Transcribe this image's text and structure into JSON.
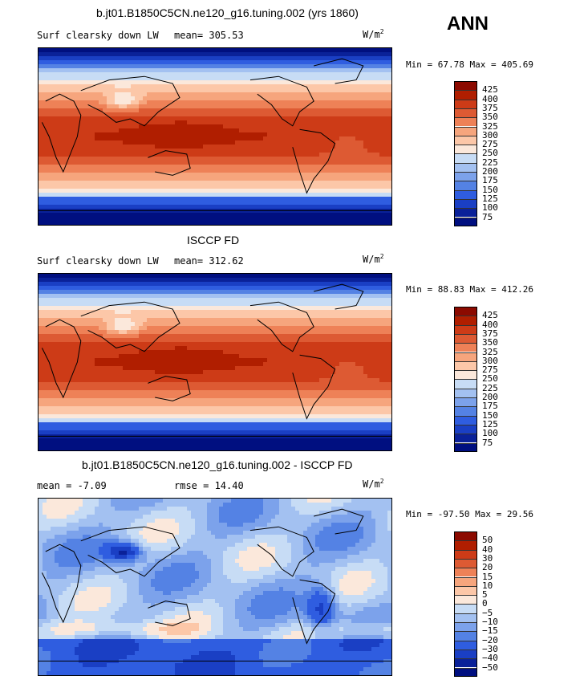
{
  "page": {
    "season": "ANN"
  },
  "chart_data": [
    {
      "type": "heatmap",
      "title": "b.jt01.B1850C5CN.ne120_g16.tuning.002 (yrs 1860)",
      "variable": "Surf clearsky down LW",
      "mean_label": "mean= 305.53",
      "units": "W/m",
      "units_sup": "2",
      "minmax": "Min =  67.78 Max = 405.69",
      "min": 67.78,
      "max": 405.69,
      "mean": 305.53,
      "colorbar_levels": [
        "425",
        "400",
        "375",
        "350",
        "325",
        "300",
        "275",
        "250",
        "225",
        "200",
        "175",
        "150",
        "125",
        "100",
        "75"
      ],
      "colorbar_colors": [
        "#8c0a00",
        "#b01e00",
        "#cd3b17",
        "#dd5a33",
        "#ee8157",
        "#f6a57d",
        "#fcc7a8",
        "#fbe8db",
        "#c7dcf5",
        "#a3c1f1",
        "#7ca2eb",
        "#5482e4",
        "#2f5de0",
        "#1a3fc4",
        "#0a2199",
        "#000f80"
      ],
      "profile": "bottom"
    },
    {
      "type": "heatmap",
      "title": "ISCCP FD",
      "variable": "Surf clearsky down LW",
      "mean_label": "mean= 312.62",
      "units": "W/m",
      "units_sup": "2",
      "minmax": "Min =  88.83 Max = 412.26",
      "min": 88.83,
      "max": 412.26,
      "mean": 312.62,
      "colorbar_levels": [
        "425",
        "400",
        "375",
        "350",
        "325",
        "300",
        "275",
        "250",
        "225",
        "200",
        "175",
        "150",
        "125",
        "100",
        "75"
      ],
      "colorbar_colors": [
        "#8c0a00",
        "#b01e00",
        "#cd3b17",
        "#dd5a33",
        "#ee8157",
        "#f6a57d",
        "#fcc7a8",
        "#fbe8db",
        "#c7dcf5",
        "#a3c1f1",
        "#7ca2eb",
        "#5482e4",
        "#2f5de0",
        "#1a3fc4",
        "#0a2199",
        "#000f80"
      ],
      "profile": "bottom"
    },
    {
      "type": "heatmap",
      "title": "b.jt01.B1850C5CN.ne120_g16.tuning.002 - ISCCP FD",
      "mean_label": "mean =   -7.09",
      "rmse_label": "rmse =   14.40",
      "units": "W/m",
      "units_sup": "2",
      "minmax": "Min = -97.50 Max =  29.56",
      "min": -97.5,
      "max": 29.56,
      "mean": -7.09,
      "rmse": 14.4,
      "colorbar_levels": [
        "50",
        "40",
        "30",
        "20",
        "15",
        "10",
        "5",
        "0",
        "−5",
        "−10",
        "−15",
        "−20",
        "−30",
        "−40",
        "−50"
      ],
      "colorbar_colors": [
        "#8c0a00",
        "#b01e00",
        "#cd3b17",
        "#dd5a33",
        "#ee8157",
        "#f6a57d",
        "#fcc7a8",
        "#fbe8db",
        "#c7dcf5",
        "#a3c1f1",
        "#7ca2eb",
        "#5482e4",
        "#2f5de0",
        "#1a3fc4",
        "#0a2199",
        "#000f80"
      ],
      "profile": "diff"
    }
  ]
}
